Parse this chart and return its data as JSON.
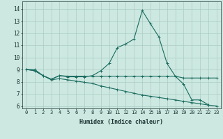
{
  "xlabel": "Humidex (Indice chaleur)",
  "bg_color": "#cce8e0",
  "grid_color": "#aaccC4",
  "line_color": "#1a6b60",
  "x_values": [
    0,
    1,
    2,
    3,
    4,
    5,
    6,
    7,
    8,
    9,
    10,
    11,
    12,
    13,
    14,
    15,
    16,
    17,
    18,
    19,
    20,
    21,
    22,
    23
  ],
  "line1": [
    9.0,
    9.0,
    8.5,
    8.2,
    8.5,
    8.4,
    8.4,
    8.4,
    8.5,
    8.9,
    9.5,
    10.8,
    11.1,
    11.5,
    13.85,
    12.75,
    11.7,
    9.5,
    8.45,
    7.8,
    6.5,
    6.5,
    6.1,
    null
  ],
  "line2": [
    9.0,
    8.9,
    8.5,
    8.2,
    8.5,
    8.45,
    8.45,
    8.45,
    8.45,
    8.45,
    8.45,
    8.45,
    8.45,
    8.45,
    8.45,
    8.45,
    8.45,
    8.45,
    8.45,
    8.3,
    8.3,
    8.3,
    8.3,
    8.3
  ],
  "line3": [
    9.0,
    8.9,
    8.5,
    8.15,
    8.25,
    8.15,
    8.05,
    7.95,
    7.85,
    7.65,
    7.5,
    7.35,
    7.2,
    7.05,
    6.9,
    6.8,
    6.7,
    6.6,
    6.5,
    6.38,
    6.28,
    6.18,
    6.08,
    6.0
  ],
  "ylim": [
    5.8,
    14.6
  ],
  "yticks": [
    6,
    7,
    8,
    9,
    10,
    11,
    12,
    13,
    14
  ],
  "xlim": [
    -0.5,
    23.5
  ],
  "marker_size": 2.5,
  "linewidth": 0.8
}
